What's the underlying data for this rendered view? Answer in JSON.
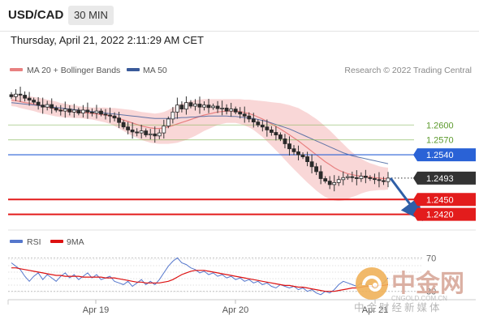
{
  "header": {
    "symbol": "USD/CAD",
    "timeframe": "30 MIN"
  },
  "datetime": "Thursday, April 21, 2022 2:11:29 AM CET",
  "legend": {
    "ma20_label": "MA 20 + Bollinger Bands",
    "ma50_label": "MA 50",
    "ma20_color": "#e88080",
    "ma50_color": "#3a5a9a"
  },
  "credit": "Research © 2022 Trading Central",
  "rsi_legend": {
    "rsi_label": "RSI",
    "ma_label": "9MA",
    "rsi_color": "#5577cc",
    "ma_color": "#dd1111"
  },
  "watermark": {
    "title": "中金网",
    "url": "CNGOLD.COM.CN",
    "subtitle": "中金财经新媒体"
  },
  "chart_data": {
    "type": "candlestick",
    "price_range": [
      1.2395,
      1.2695
    ],
    "x_ticks": [
      "Apr 19",
      "Apr 20",
      "Apr 21"
    ],
    "levels": [
      {
        "value": 1.26,
        "label": "1.2600",
        "kind": "resistance",
        "color": "#7ab04a"
      },
      {
        "value": 1.257,
        "label": "1.2570",
        "kind": "resistance",
        "color": "#7ab04a"
      },
      {
        "value": 1.254,
        "label": "1.2540",
        "kind": "pivot",
        "color": "#2a62d6"
      },
      {
        "value": 1.2493,
        "label": "1.2493",
        "kind": "last",
        "color": "#333333"
      },
      {
        "value": 1.245,
        "label": "1.2450",
        "kind": "support",
        "color": "#e31c1c"
      },
      {
        "value": 1.242,
        "label": "1.2420",
        "kind": "support",
        "color": "#e31c1c"
      }
    ],
    "projection": {
      "from": 1.2493,
      "to": 1.242,
      "color": "#2f5fa7"
    },
    "close": [
      1.2657,
      1.2662,
      1.266,
      1.2654,
      1.265,
      1.2646,
      1.264,
      1.2636,
      1.2641,
      1.2634,
      1.263,
      1.2628,
      1.2632,
      1.2626,
      1.263,
      1.2624,
      1.263,
      1.2626,
      1.2624,
      1.2628,
      1.2622,
      1.262,
      1.2618,
      1.2614,
      1.2605,
      1.2596,
      1.259,
      1.2586,
      1.2584,
      1.2588,
      1.258,
      1.2582,
      1.2578,
      1.2584,
      1.2598,
      1.2612,
      1.2626,
      1.264,
      1.2632,
      1.2645,
      1.2638,
      1.2642,
      1.2636,
      1.264,
      1.2635,
      1.2638,
      1.2633,
      1.2634,
      1.2628,
      1.2632,
      1.2626,
      1.2622,
      1.2618,
      1.2612,
      1.2606,
      1.26,
      1.2596,
      1.259,
      1.2585,
      1.258,
      1.2572,
      1.2562,
      1.2552,
      1.2546,
      1.254,
      1.2536,
      1.2526,
      1.2516,
      1.2506,
      1.2492,
      1.2487,
      1.248,
      1.2484,
      1.249,
      1.2494,
      1.2496,
      1.2494,
      1.2492,
      1.2497,
      1.2494,
      1.2492,
      1.249,
      1.2488,
      1.2486,
      1.2493
    ],
    "ma20": [
      1.265,
      1.2649,
      1.2647,
      1.2645,
      1.2644,
      1.2642,
      1.264,
      1.2638,
      1.2636,
      1.2634,
      1.2632,
      1.263,
      1.2629,
      1.2628,
      1.2627,
      1.2626,
      1.2625,
      1.2624,
      1.2623,
      1.2622,
      1.2621,
      1.262,
      1.2618,
      1.2616,
      1.2613,
      1.261,
      1.2607,
      1.2604,
      1.2601,
      1.2598,
      1.2596,
      1.2594,
      1.2593,
      1.2593,
      1.2594,
      1.2596,
      1.2599,
      1.2602,
      1.2605,
      1.2608,
      1.2611,
      1.2614,
      1.2617,
      1.262,
      1.2622,
      1.2624,
      1.2626,
      1.2627,
      1.2628,
      1.2628,
      1.2628,
      1.2627,
      1.2625,
      1.2623,
      1.262,
      1.2616,
      1.2612,
      1.2607,
      1.2602,
      1.2597,
      1.2592,
      1.2586,
      1.258,
      1.2574,
      1.2568,
      1.2561,
      1.2554,
      1.2547,
      1.254,
      1.2533,
      1.2526,
      1.252,
      1.2514,
      1.2509,
      1.2505,
      1.2502,
      1.25,
      1.2498,
      1.2497,
      1.2496,
      1.2495,
      1.2494,
      1.2493,
      1.2492,
      1.2492
    ],
    "ma50": [
      1.2645,
      1.2644,
      1.2643,
      1.2642,
      1.2641,
      1.264,
      1.2639,
      1.2638,
      1.2637,
      1.2636,
      1.2635,
      1.2634,
      1.2633,
      1.2632,
      1.2631,
      1.263,
      1.2629,
      1.2628,
      1.2627,
      1.2626,
      1.2625,
      1.2624,
      1.2623,
      1.2622,
      1.2621,
      1.262,
      1.2619,
      1.2618,
      1.2617,
      1.2616,
      1.2615,
      1.2614,
      1.2613,
      1.2613,
      1.2613,
      1.2613,
      1.2614,
      1.2614,
      1.2615,
      1.2615,
      1.2616,
      1.2616,
      1.2617,
      1.2617,
      1.2618,
      1.2618,
      1.2618,
      1.2618,
      1.2618,
      1.2617,
      1.2617,
      1.2616,
      1.2615,
      1.2614,
      1.2613,
      1.2611,
      1.2609,
      1.2607,
      1.2604,
      1.2601,
      1.2598,
      1.2595,
      1.2592,
      1.2588,
      1.2584,
      1.258,
      1.2576,
      1.2572,
      1.2568,
      1.2564,
      1.256,
      1.2556,
      1.2552,
      1.2548,
      1.2544,
      1.2541,
      1.2538,
      1.2536,
      1.2534,
      1.2532,
      1.253,
      1.2528,
      1.2526,
      1.2524,
      1.2522
    ],
    "bb_width": [
      0.0012,
      0.0012,
      0.0013,
      0.0013,
      0.0014,
      0.0014,
      0.0015,
      0.0015,
      0.0015,
      0.0015,
      0.0015,
      0.0014,
      0.0014,
      0.0013,
      0.0013,
      0.0012,
      0.0012,
      0.0012,
      0.0012,
      0.0013,
      0.0014,
      0.0015,
      0.0016,
      0.0018,
      0.002,
      0.0022,
      0.0024,
      0.0026,
      0.0027,
      0.0028,
      0.0029,
      0.003,
      0.003,
      0.0031,
      0.0032,
      0.0034,
      0.0036,
      0.0038,
      0.0038,
      0.0038,
      0.0037,
      0.0036,
      0.0034,
      0.0032,
      0.003,
      0.0028,
      0.0026,
      0.0025,
      0.0024,
      0.0024,
      0.0024,
      0.0025,
      0.0026,
      0.0028,
      0.003,
      0.0033,
      0.0036,
      0.004,
      0.0044,
      0.0048,
      0.0052,
      0.0056,
      0.006,
      0.0063,
      0.0066,
      0.0068,
      0.007,
      0.0071,
      0.0072,
      0.0072,
      0.0071,
      0.0069,
      0.0066,
      0.0062,
      0.0057,
      0.0051,
      0.0045,
      0.004,
      0.0035,
      0.0031,
      0.0028,
      0.0026,
      0.0024,
      0.0023,
      0.0022
    ],
    "rsi": {
      "levels": [
        70,
        30
      ],
      "level_labels": [
        "70",
        "30"
      ],
      "range": [
        20,
        80
      ],
      "rsi": [
        64,
        60,
        56,
        48,
        42,
        48,
        52,
        44,
        50,
        46,
        42,
        48,
        52,
        46,
        50,
        44,
        48,
        52,
        46,
        50,
        44,
        46,
        48,
        42,
        40,
        38,
        42,
        36,
        40,
        44,
        38,
        42,
        38,
        44,
        52,
        60,
        66,
        70,
        64,
        62,
        58,
        56,
        52,
        54,
        50,
        52,
        48,
        50,
        46,
        48,
        44,
        46,
        42,
        44,
        40,
        42,
        38,
        40,
        36,
        34,
        38,
        36,
        34,
        36,
        32,
        34,
        30,
        32,
        28,
        26,
        30,
        28,
        32,
        38,
        42,
        40,
        38,
        36,
        40,
        38,
        36,
        34,
        38,
        40,
        46
      ],
      "ma9": [
        58,
        58,
        57,
        56,
        55,
        54,
        53,
        52,
        51,
        50,
        49,
        49,
        48,
        48,
        48,
        48,
        47,
        47,
        47,
        47,
        47,
        46,
        46,
        46,
        45,
        44,
        43,
        42,
        41,
        41,
        40,
        40,
        40,
        40,
        41,
        42,
        44,
        47,
        50,
        52,
        54,
        55,
        55,
        55,
        54,
        53,
        52,
        51,
        50,
        49,
        48,
        47,
        46,
        45,
        44,
        43,
        42,
        41,
        40,
        39,
        38,
        37,
        37,
        36,
        35,
        35,
        34,
        33,
        32,
        31,
        30,
        30,
        30,
        31,
        32,
        33,
        34,
        34,
        35,
        36,
        36,
        36,
        37,
        37,
        38
      ]
    }
  }
}
